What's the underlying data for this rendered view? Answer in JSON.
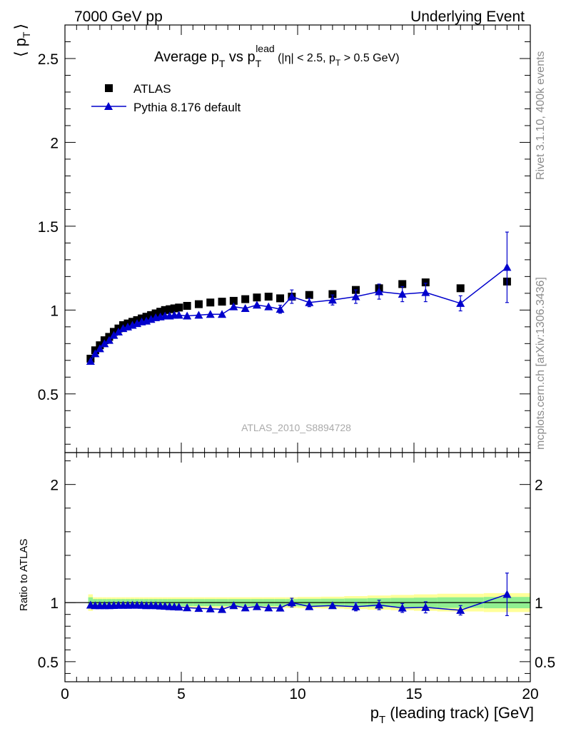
{
  "header": {
    "left": "7000 GeV pp",
    "right": "Underlying Event"
  },
  "side_text": {
    "rivet": "Rivet 3.1.10,  400k events",
    "url": "mcplots.cern.ch [arXiv:1306.3436]"
  },
  "watermark": "ATLAS_2010_S8894728",
  "colors": {
    "data": "#000000",
    "mc": "#0000cc",
    "band_inner": "#90ee90",
    "band_outer": "#ffff99"
  },
  "chart_data": [
    {
      "type": "scatter",
      "title": {
        "main": "Average p",
        "sub_T": "T",
        "vs": " vs p",
        "sup_lead": "lead",
        "paren_a": " (|η| < 2.5, p",
        "paren_b": " > 0.5 GeV)"
      },
      "ylabel": "⟨ p",
      "ylabel_sub": "T",
      "ylabel_close": "⟩",
      "xlim": [
        0,
        20
      ],
      "ylim": [
        0.15,
        2.7
      ],
      "yticks": [
        "0.5",
        "1",
        "1.5",
        "2",
        "2.5"
      ],
      "legend_position": "top-left",
      "series": [
        {
          "name": "ATLAS",
          "marker": "square",
          "x": [
            1.1,
            1.3,
            1.5,
            1.7,
            1.9,
            2.1,
            2.3,
            2.5,
            2.7,
            2.9,
            3.1,
            3.3,
            3.5,
            3.7,
            3.9,
            4.1,
            4.3,
            4.5,
            4.7,
            4.9,
            5.25,
            5.75,
            6.25,
            6.75,
            7.25,
            7.75,
            8.25,
            8.75,
            9.25,
            9.75,
            10.5,
            11.5,
            12.5,
            13.5,
            14.5,
            15.5,
            17.0,
            19.0
          ],
          "y": [
            0.71,
            0.76,
            0.79,
            0.82,
            0.84,
            0.87,
            0.89,
            0.91,
            0.92,
            0.93,
            0.94,
            0.95,
            0.96,
            0.97,
            0.98,
            0.99,
            1.0,
            1.005,
            1.01,
            1.015,
            1.025,
            1.035,
            1.045,
            1.05,
            1.055,
            1.065,
            1.075,
            1.08,
            1.07,
            1.08,
            1.09,
            1.095,
            1.12,
            1.13,
            1.155,
            1.165,
            1.13,
            1.17
          ]
        },
        {
          "name": "Pythia 8.176 default",
          "marker": "triangle",
          "x": [
            1.1,
            1.3,
            1.5,
            1.7,
            1.9,
            2.1,
            2.3,
            2.5,
            2.7,
            2.9,
            3.1,
            3.3,
            3.5,
            3.7,
            3.9,
            4.1,
            4.3,
            4.5,
            4.7,
            4.9,
            5.25,
            5.75,
            6.25,
            6.75,
            7.25,
            7.75,
            8.25,
            8.75,
            9.25,
            9.75,
            10.5,
            11.5,
            12.5,
            13.5,
            14.5,
            15.5,
            17.0,
            19.0
          ],
          "y": [
            0.695,
            0.74,
            0.77,
            0.8,
            0.82,
            0.85,
            0.87,
            0.89,
            0.9,
            0.91,
            0.92,
            0.93,
            0.935,
            0.945,
            0.955,
            0.96,
            0.965,
            0.965,
            0.97,
            0.97,
            0.965,
            0.97,
            0.975,
            0.975,
            1.02,
            1.01,
            1.03,
            1.02,
            1.005,
            1.08,
            1.045,
            1.06,
            1.08,
            1.11,
            1.095,
            1.105,
            1.04,
            1.255
          ],
          "yerr": [
            0.004,
            0.004,
            0.004,
            0.004,
            0.004,
            0.004,
            0.004,
            0.004,
            0.005,
            0.005,
            0.005,
            0.005,
            0.005,
            0.006,
            0.006,
            0.006,
            0.007,
            0.007,
            0.007,
            0.008,
            0.008,
            0.009,
            0.01,
            0.012,
            0.014,
            0.016,
            0.018,
            0.02,
            0.024,
            0.04,
            0.025,
            0.03,
            0.04,
            0.045,
            0.045,
            0.055,
            0.045,
            0.21
          ]
        }
      ]
    },
    {
      "type": "scatter",
      "ylabel": "Ratio to ATLAS",
      "xlabel": "p",
      "xlabel_sub": "T",
      "xlabel_rest": " (leading track) [GeV]",
      "xlim": [
        0,
        20
      ],
      "ylim": [
        0.33,
        2.27
      ],
      "xticks": [
        "0",
        "5",
        "10",
        "15",
        "20"
      ],
      "yticks": [
        "0.5",
        "1",
        "2"
      ],
      "band": {
        "x_edges": [
          1.0,
          1.2,
          1.4,
          1.6,
          1.8,
          2.0,
          2.2,
          2.4,
          2.6,
          2.8,
          3.0,
          3.2,
          3.4,
          3.6,
          3.8,
          4.0,
          4.2,
          4.4,
          4.6,
          4.8,
          5.0,
          5.5,
          6.0,
          6.5,
          7.0,
          7.5,
          8.0,
          8.5,
          9.0,
          9.5,
          10.0,
          11.0,
          12.0,
          13.0,
          14.0,
          15.0,
          16.0,
          18.0,
          20.0
        ],
        "inner": [
          0.045,
          0.03,
          0.03,
          0.03,
          0.03,
          0.03,
          0.03,
          0.03,
          0.03,
          0.03,
          0.03,
          0.03,
          0.03,
          0.03,
          0.03,
          0.03,
          0.03,
          0.03,
          0.03,
          0.03,
          0.03,
          0.03,
          0.03,
          0.03,
          0.03,
          0.03,
          0.03,
          0.03,
          0.03,
          0.03,
          0.032,
          0.033,
          0.035,
          0.038,
          0.04,
          0.042,
          0.045,
          0.048
        ],
        "outer": [
          0.07,
          0.045,
          0.045,
          0.045,
          0.045,
          0.045,
          0.045,
          0.045,
          0.045,
          0.045,
          0.045,
          0.045,
          0.045,
          0.045,
          0.045,
          0.045,
          0.045,
          0.045,
          0.045,
          0.045,
          0.045,
          0.045,
          0.045,
          0.045,
          0.045,
          0.045,
          0.045,
          0.045,
          0.045,
          0.045,
          0.048,
          0.05,
          0.055,
          0.06,
          0.065,
          0.07,
          0.075,
          0.08
        ]
      },
      "series": [
        {
          "name": "Pythia 8.176 default",
          "marker": "triangle",
          "x": [
            1.1,
            1.3,
            1.5,
            1.7,
            1.9,
            2.1,
            2.3,
            2.5,
            2.7,
            2.9,
            3.1,
            3.3,
            3.5,
            3.7,
            3.9,
            4.1,
            4.3,
            4.5,
            4.7,
            4.9,
            5.25,
            5.75,
            6.25,
            6.75,
            7.25,
            7.75,
            8.25,
            8.75,
            9.25,
            9.75,
            10.5,
            11.5,
            12.5,
            13.5,
            14.5,
            15.5,
            17.0,
            19.0
          ],
          "y": [
            0.98,
            0.975,
            0.975,
            0.975,
            0.975,
            0.977,
            0.978,
            0.978,
            0.978,
            0.979,
            0.979,
            0.978,
            0.975,
            0.976,
            0.975,
            0.972,
            0.97,
            0.967,
            0.965,
            0.963,
            0.957,
            0.952,
            0.948,
            0.943,
            0.975,
            0.956,
            0.967,
            0.956,
            0.955,
            1.0,
            0.967,
            0.975,
            0.965,
            0.98,
            0.955,
            0.96,
            0.935,
            1.07
          ],
          "yerr": [
            0.004,
            0.004,
            0.004,
            0.004,
            0.004,
            0.004,
            0.004,
            0.004,
            0.005,
            0.005,
            0.005,
            0.005,
            0.005,
            0.006,
            0.006,
            0.006,
            0.007,
            0.007,
            0.007,
            0.008,
            0.008,
            0.009,
            0.01,
            0.012,
            0.013,
            0.015,
            0.017,
            0.019,
            0.022,
            0.037,
            0.023,
            0.027,
            0.035,
            0.04,
            0.038,
            0.047,
            0.04,
            0.18
          ]
        }
      ]
    }
  ]
}
